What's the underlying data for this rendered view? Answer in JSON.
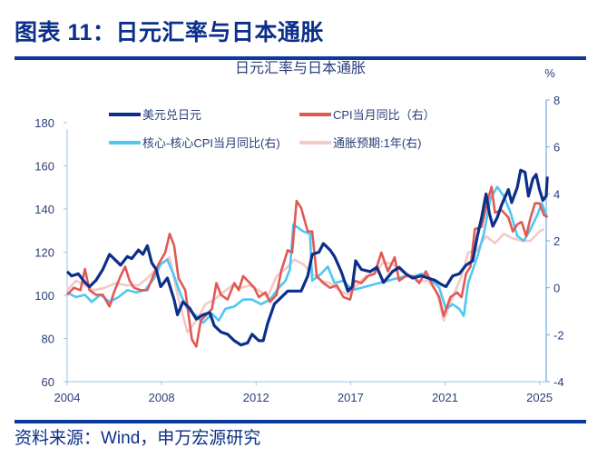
{
  "header": {
    "figure_title": "图表 11：日元汇率与日本通胀"
  },
  "footer": {
    "source": "资料来源：Wind，申万宏源研究"
  },
  "chart_data": {
    "type": "line",
    "title": "日元汇率与日本通胀",
    "right_unit": "%",
    "left_axis": {
      "ylim": [
        60,
        180
      ],
      "ticks": [
        60,
        80,
        100,
        120,
        140,
        160,
        180
      ]
    },
    "right_axis": {
      "ylim": [
        -4,
        8
      ],
      "ticks": [
        -4,
        -2,
        0,
        2,
        4,
        6,
        8
      ]
    },
    "x_axis": {
      "xlim": [
        2004,
        2025.5
      ],
      "tick_labels": [
        "2004",
        "2008",
        "2012",
        "2017",
        "2021",
        "2025"
      ],
      "tick_years": [
        2004,
        2008.24,
        2012.48,
        2016.72,
        2020.96,
        2025.2
      ]
    },
    "legend_placement": "top-left",
    "series": [
      {
        "name": "美元兑日元",
        "axis": "left",
        "color": "#0b2f8a",
        "points": [
          [
            2004,
            111
          ],
          [
            2004.2,
            109
          ],
          [
            2004.5,
            110
          ],
          [
            2004.8,
            106
          ],
          [
            2005,
            104
          ],
          [
            2005.3,
            107
          ],
          [
            2005.6,
            112
          ],
          [
            2005.9,
            119
          ],
          [
            2006.1,
            117
          ],
          [
            2006.4,
            114
          ],
          [
            2006.7,
            118
          ],
          [
            2006.9,
            117
          ],
          [
            2007.2,
            121
          ],
          [
            2007.4,
            119
          ],
          [
            2007.6,
            123
          ],
          [
            2007.8,
            115
          ],
          [
            2008,
            112
          ],
          [
            2008.2,
            104
          ],
          [
            2008.5,
            108
          ],
          [
            2008.8,
            98
          ],
          [
            2008.95,
            91
          ],
          [
            2009.2,
            97
          ],
          [
            2009.5,
            94
          ],
          [
            2009.8,
            89
          ],
          [
            2010.1,
            91
          ],
          [
            2010.4,
            92
          ],
          [
            2010.6,
            86
          ],
          [
            2010.9,
            83
          ],
          [
            2011.2,
            82
          ],
          [
            2011.5,
            79
          ],
          [
            2011.8,
            77
          ],
          [
            2012.1,
            78
          ],
          [
            2012.3,
            82
          ],
          [
            2012.6,
            79
          ],
          [
            2012.8,
            79
          ],
          [
            2013,
            87
          ],
          [
            2013.3,
            96
          ],
          [
            2013.6,
            99
          ],
          [
            2013.9,
            102
          ],
          [
            2014.2,
            102
          ],
          [
            2014.5,
            102
          ],
          [
            2014.8,
            109
          ],
          [
            2015,
            119
          ],
          [
            2015.3,
            120
          ],
          [
            2015.5,
            124
          ],
          [
            2015.8,
            121
          ],
          [
            2016,
            118
          ],
          [
            2016.3,
            111
          ],
          [
            2016.6,
            102
          ],
          [
            2016.8,
            104
          ],
          [
            2016.95,
            116
          ],
          [
            2017.2,
            112
          ],
          [
            2017.6,
            111
          ],
          [
            2017.9,
            113
          ],
          [
            2018.2,
            106
          ],
          [
            2018.6,
            111
          ],
          [
            2018.9,
            113
          ],
          [
            2019.2,
            110
          ],
          [
            2019.5,
            108
          ],
          [
            2019.9,
            109
          ],
          [
            2020.2,
            108
          ],
          [
            2020.5,
            107
          ],
          [
            2020.8,
            105
          ],
          [
            2021,
            104
          ],
          [
            2021.3,
            109
          ],
          [
            2021.6,
            110
          ],
          [
            2021.9,
            114
          ],
          [
            2022.2,
            116
          ],
          [
            2022.4,
            127
          ],
          [
            2022.6,
            136
          ],
          [
            2022.8,
            147
          ],
          [
            2022.95,
            138
          ],
          [
            2023.1,
            132
          ],
          [
            2023.3,
            136
          ],
          [
            2023.5,
            142
          ],
          [
            2023.8,
            149
          ],
          [
            2023.95,
            143
          ],
          [
            2024.2,
            150
          ],
          [
            2024.35,
            158
          ],
          [
            2024.55,
            157
          ],
          [
            2024.7,
            146
          ],
          [
            2024.9,
            154
          ],
          [
            2025.05,
            156
          ],
          [
            2025.2,
            149
          ],
          [
            2025.35,
            144
          ],
          [
            2025.5,
            146
          ],
          [
            2025.55,
            155
          ]
        ]
      },
      {
        "name": "CPI当月同比（右）",
        "axis": "right",
        "color": "#e05a55",
        "points": [
          [
            2004,
            -0.3
          ],
          [
            2004.3,
            0
          ],
          [
            2004.6,
            -0.1
          ],
          [
            2004.8,
            0.8
          ],
          [
            2005,
            -0.1
          ],
          [
            2005.3,
            -0.3
          ],
          [
            2005.6,
            -0.3
          ],
          [
            2005.9,
            -0.8
          ],
          [
            2006.1,
            -0.2
          ],
          [
            2006.4,
            0.5
          ],
          [
            2006.6,
            0.9
          ],
          [
            2006.8,
            0.3
          ],
          [
            2007,
            0
          ],
          [
            2007.3,
            -0.1
          ],
          [
            2007.6,
            -0.1
          ],
          [
            2007.9,
            0.6
          ],
          [
            2008.1,
            1.0
          ],
          [
            2008.4,
            1.5
          ],
          [
            2008.6,
            2.3
          ],
          [
            2008.8,
            1.8
          ],
          [
            2009,
            0.4
          ],
          [
            2009.3,
            -0.1
          ],
          [
            2009.6,
            -2.2
          ],
          [
            2009.8,
            -2.5
          ],
          [
            2010,
            -1.4
          ],
          [
            2010.3,
            -1.1
          ],
          [
            2010.5,
            -0.9
          ],
          [
            2010.7,
            0.2
          ],
          [
            2010.9,
            -0.3
          ],
          [
            2011.2,
            -0.5
          ],
          [
            2011.5,
            0.2
          ],
          [
            2011.7,
            -0.1
          ],
          [
            2011.9,
            0.5
          ],
          [
            2012.1,
            0.3
          ],
          [
            2012.4,
            0
          ],
          [
            2012.6,
            -0.4
          ],
          [
            2012.9,
            -0.2
          ],
          [
            2013.1,
            -0.6
          ],
          [
            2013.4,
            -0.3
          ],
          [
            2013.6,
            0.7
          ],
          [
            2013.9,
            1.6
          ],
          [
            2014.1,
            1.5
          ],
          [
            2014.3,
            3.7
          ],
          [
            2014.5,
            3.4
          ],
          [
            2014.8,
            2.4
          ],
          [
            2015,
            2.4
          ],
          [
            2015.2,
            0.5
          ],
          [
            2015.5,
            0.2
          ],
          [
            2015.8,
            0
          ],
          [
            2016.1,
            0.1
          ],
          [
            2016.4,
            -0.4
          ],
          [
            2016.7,
            -0.5
          ],
          [
            2016.9,
            0.3
          ],
          [
            2017.2,
            0.2
          ],
          [
            2017.5,
            0.5
          ],
          [
            2017.8,
            0.6
          ],
          [
            2018.1,
            1.5
          ],
          [
            2018.4,
            0.7
          ],
          [
            2018.7,
            1.3
          ],
          [
            2018.9,
            0.3
          ],
          [
            2019.2,
            0.5
          ],
          [
            2019.5,
            0.5
          ],
          [
            2019.8,
            0.2
          ],
          [
            2020.1,
            0.7
          ],
          [
            2020.4,
            0.1
          ],
          [
            2020.7,
            -0.4
          ],
          [
            2020.9,
            -1.2
          ],
          [
            2021.2,
            -0.4
          ],
          [
            2021.5,
            -0.2
          ],
          [
            2021.7,
            -0.4
          ],
          [
            2021.9,
            0.6
          ],
          [
            2022.1,
            0.9
          ],
          [
            2022.3,
            2.5
          ],
          [
            2022.6,
            2.6
          ],
          [
            2022.9,
            3.8
          ],
          [
            2023.05,
            4.3
          ],
          [
            2023.2,
            3.2
          ],
          [
            2023.5,
            3.3
          ],
          [
            2023.8,
            3.0
          ],
          [
            2024.0,
            2.4
          ],
          [
            2024.2,
            2.7
          ],
          [
            2024.4,
            2.8
          ],
          [
            2024.6,
            2.2
          ],
          [
            2024.8,
            3.0
          ],
          [
            2025.0,
            3.6
          ],
          [
            2025.2,
            3.6
          ],
          [
            2025.4,
            3.1
          ],
          [
            2025.55,
            3.0
          ]
        ]
      },
      {
        "name": "核心-核心CPI当月同比(右)",
        "axis": "right",
        "color": "#4fc7f0",
        "points": [
          [
            2004,
            -0.2
          ],
          [
            2004.4,
            -0.4
          ],
          [
            2004.8,
            -0.3
          ],
          [
            2005.1,
            -0.6
          ],
          [
            2005.5,
            -0.3
          ],
          [
            2005.9,
            -0.6
          ],
          [
            2006.3,
            -0.4
          ],
          [
            2006.7,
            -0.1
          ],
          [
            2007.1,
            -0.2
          ],
          [
            2007.5,
            -0.1
          ],
          [
            2007.9,
            0.4
          ],
          [
            2008.2,
            1.0
          ],
          [
            2008.5,
            1.2
          ],
          [
            2008.8,
            0.5
          ],
          [
            2009.1,
            -0.3
          ],
          [
            2009.4,
            -0.9
          ],
          [
            2009.8,
            -1.2
          ],
          [
            2010.1,
            -1.5
          ],
          [
            2010.5,
            -1.1
          ],
          [
            2010.8,
            -1.4
          ],
          [
            2011.1,
            -0.9
          ],
          [
            2011.5,
            -0.8
          ],
          [
            2011.9,
            -0.5
          ],
          [
            2012.3,
            -0.5
          ],
          [
            2012.7,
            -0.7
          ],
          [
            2013.1,
            -0.5
          ],
          [
            2013.5,
            0
          ],
          [
            2013.8,
            0.3
          ],
          [
            2014.0,
            0.8
          ],
          [
            2014.15,
            2.7
          ],
          [
            2014.6,
            2.4
          ],
          [
            2014.9,
            2.3
          ],
          [
            2015.0,
            0.3
          ],
          [
            2015.4,
            0.6
          ],
          [
            2015.7,
            0.9
          ],
          [
            2016.0,
            0.2
          ],
          [
            2016.4,
            0.3
          ],
          [
            2016.8,
            -0.1
          ],
          [
            2017.2,
            0
          ],
          [
            2017.6,
            0.1
          ],
          [
            2018.0,
            0.2
          ],
          [
            2018.4,
            0.3
          ],
          [
            2018.8,
            0.4
          ],
          [
            2019.2,
            0.5
          ],
          [
            2019.6,
            0.5
          ],
          [
            2019.9,
            0.6
          ],
          [
            2020.3,
            0.4
          ],
          [
            2020.7,
            0
          ],
          [
            2021.0,
            -0.9
          ],
          [
            2021.3,
            -0.7
          ],
          [
            2021.6,
            -0.9
          ],
          [
            2021.8,
            -1.2
          ],
          [
            2022.0,
            0.2
          ],
          [
            2022.4,
            1.3
          ],
          [
            2022.7,
            2.3
          ],
          [
            2023.0,
            3.8
          ],
          [
            2023.3,
            4.3
          ],
          [
            2023.6,
            3.9
          ],
          [
            2023.9,
            3.2
          ],
          [
            2024.2,
            2.2
          ],
          [
            2024.5,
            2.0
          ],
          [
            2024.8,
            2.5
          ],
          [
            2025.1,
            3.1
          ],
          [
            2025.3,
            3.6
          ],
          [
            2025.55,
            3.0
          ]
        ]
      },
      {
        "name": "通胀预期:1年(右)",
        "axis": "right",
        "color": "#f6c8c8",
        "points": [
          [
            2004,
            -0.1
          ],
          [
            2004.4,
            0.3
          ],
          [
            2004.8,
            0.1
          ],
          [
            2005.2,
            -0.1
          ],
          [
            2005.7,
            0
          ],
          [
            2006.2,
            0.2
          ],
          [
            2006.7,
            0.1
          ],
          [
            2007.2,
            0.1
          ],
          [
            2007.7,
            0.5
          ],
          [
            2008.2,
            1.0
          ],
          [
            2008.6,
            1.3
          ],
          [
            2009.0,
            -0.5
          ],
          [
            2009.4,
            -1.9
          ],
          [
            2009.8,
            -1.4
          ],
          [
            2010.2,
            -0.7
          ],
          [
            2010.6,
            -0.5
          ],
          [
            2011.0,
            -0.2
          ],
          [
            2011.4,
            0.1
          ],
          [
            2011.8,
            0.0
          ],
          [
            2012.2,
            0.1
          ],
          [
            2012.6,
            -0.1
          ],
          [
            2013.0,
            -0.4
          ],
          [
            2013.4,
            0.5
          ],
          [
            2013.8,
            0.8
          ],
          [
            2014.2,
            1.2
          ],
          [
            2014.6,
            1.0
          ],
          [
            2015.0,
            0.6
          ],
          [
            2015.4,
            0.3
          ],
          [
            2015.8,
            0.2
          ],
          [
            2016.2,
            -0.1
          ],
          [
            2016.6,
            -0.3
          ],
          [
            2017.0,
            0.1
          ],
          [
            2017.4,
            0.5
          ],
          [
            2017.8,
            0.6
          ],
          [
            2018.2,
            1.1
          ],
          [
            2018.6,
            1.0
          ],
          [
            2019.0,
            0.7
          ],
          [
            2019.4,
            0.5
          ],
          [
            2019.8,
            0.3
          ],
          [
            2020.2,
            0.3
          ],
          [
            2020.6,
            -0.2
          ],
          [
            2020.9,
            -1.4
          ],
          [
            2021.3,
            -0.4
          ],
          [
            2021.7,
            0.5
          ],
          [
            2022.0,
            1.5
          ],
          [
            2022.4,
            1.6
          ],
          [
            2022.8,
            2.2
          ],
          [
            2023.2,
            1.9
          ],
          [
            2023.6,
            2.3
          ],
          [
            2024.0,
            2.1
          ],
          [
            2024.4,
            2.0
          ],
          [
            2024.8,
            2.0
          ],
          [
            2025.2,
            2.4
          ],
          [
            2025.4,
            2.5
          ]
        ]
      }
    ]
  }
}
